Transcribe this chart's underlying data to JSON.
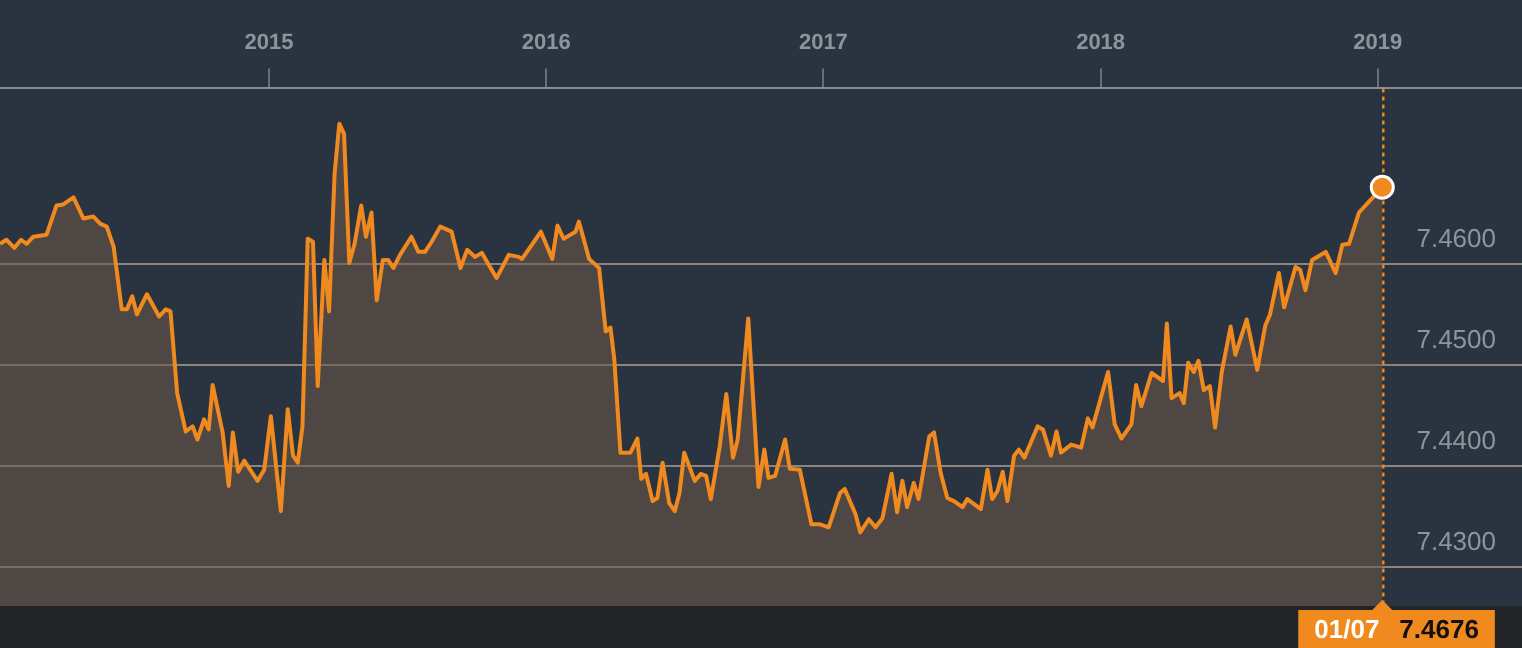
{
  "chart_data": {
    "type": "area",
    "legend": false,
    "grid": "y",
    "marker": "none",
    "line_style": "solid",
    "xlim": [
      2014.03,
      2019.52
    ],
    "xticks": [
      2015,
      2016,
      2017,
      2018,
      2019
    ],
    "ylim": [
      7.4261,
      7.4774
    ],
    "yticks": [
      {
        "value": 7.43,
        "label": "7.4300"
      },
      {
        "value": 7.44,
        "label": "7.4400"
      },
      {
        "value": 7.45,
        "label": "7.4500"
      },
      {
        "value": 7.46,
        "label": "7.4600"
      }
    ],
    "ref_lines": [
      {
        "axis": "x",
        "value": 2019.016,
        "color": "#f0891e",
        "line_style": "dotted"
      }
    ],
    "annotations": [
      "01/07 7.4676"
    ],
    "series": [
      {
        "color": "#f0891e",
        "x": [
          2014.03,
          2014.053,
          2014.082,
          2014.106,
          2014.126,
          2014.15,
          2014.198,
          2014.234,
          2014.258,
          2014.295,
          2014.331,
          2014.367,
          2014.391,
          2014.415,
          2014.44,
          2014.469,
          2014.488,
          2014.507,
          2014.524,
          2014.56,
          2014.604,
          2014.628,
          2014.645,
          2014.669,
          2014.7,
          2014.725,
          2014.742,
          2014.766,
          2014.783,
          2014.797,
          2014.833,
          2014.855,
          2014.87,
          2014.889,
          2014.911,
          2014.959,
          2014.983,
          2015.007,
          2015.043,
          2015.068,
          2015.087,
          2015.104,
          2015.121,
          2015.14,
          2015.159,
          2015.176,
          2015.2,
          2015.217,
          2015.237,
          2015.254,
          2015.271,
          2015.29,
          2015.309,
          2015.333,
          2015.35,
          2015.37,
          2015.389,
          2015.411,
          2015.43,
          2015.449,
          2015.473,
          2015.514,
          2015.539,
          2015.563,
          2015.587,
          2015.618,
          2015.659,
          2015.691,
          2015.715,
          2015.744,
          2015.768,
          2015.821,
          2015.865,
          2015.901,
          2015.913,
          2015.961,
          2015.981,
          2016.022,
          2016.041,
          2016.063,
          2016.106,
          2016.118,
          2016.155,
          2016.191,
          2016.215,
          2016.232,
          2016.246,
          2016.268,
          2016.304,
          2016.329,
          2016.343,
          2016.36,
          2016.384,
          2016.401,
          2016.42,
          2016.444,
          2016.464,
          2016.481,
          2016.498,
          2016.536,
          2016.558,
          2016.577,
          2016.594,
          2016.626,
          2016.65,
          2016.674,
          2016.691,
          2016.729,
          2016.766,
          2016.787,
          2016.802,
          2016.826,
          2016.862,
          2016.879,
          2016.915,
          2016.957,
          2016.988,
          2017.019,
          2017.06,
          2017.077,
          2017.116,
          2017.133,
          2017.164,
          2017.188,
          2017.213,
          2017.246,
          2017.266,
          2017.285,
          2017.302,
          2017.326,
          2017.343,
          2017.382,
          2017.399,
          2017.423,
          2017.447,
          2017.471,
          2017.502,
          2017.519,
          2017.568,
          2017.592,
          2017.609,
          2017.628,
          2017.647,
          2017.664,
          2017.688,
          2017.705,
          2017.725,
          2017.773,
          2017.792,
          2017.821,
          2017.841,
          2017.857,
          2017.894,
          2017.93,
          2017.954,
          2017.971,
          2018.027,
          2018.051,
          2018.075,
          2018.111,
          2018.128,
          2018.147,
          2018.184,
          2018.225,
          2018.239,
          2018.256,
          2018.285,
          2018.3,
          2018.316,
          2018.336,
          2018.353,
          2018.372,
          2018.394,
          2018.413,
          2018.437,
          2018.469,
          2018.486,
          2018.527,
          2018.565,
          2018.594,
          2018.611,
          2018.643,
          2018.662,
          2018.703,
          2018.72,
          2018.739,
          2018.763,
          2018.812,
          2018.848,
          2018.872,
          2018.896,
          2018.932,
          2018.969,
          2019.016
        ],
        "values": [
          7.462,
          7.4624,
          7.4616,
          7.4624,
          7.462,
          7.4627,
          7.4629,
          7.4658,
          7.4659,
          7.4666,
          7.4645,
          7.4647,
          7.464,
          7.4637,
          7.4617,
          7.4555,
          7.4555,
          7.4568,
          7.455,
          7.457,
          7.4548,
          7.4555,
          7.4553,
          7.4472,
          7.4434,
          7.4439,
          7.4426,
          7.4446,
          7.4436,
          7.448,
          7.4433,
          7.438,
          7.4433,
          7.4394,
          7.4405,
          7.4385,
          7.4396,
          7.4449,
          7.4355,
          7.4456,
          7.441,
          7.4403,
          7.4439,
          7.4625,
          7.4622,
          7.4479,
          7.4604,
          7.4553,
          7.469,
          7.4739,
          7.4729,
          7.4601,
          7.462,
          7.4658,
          7.4627,
          7.4651,
          7.4564,
          7.4604,
          7.4604,
          7.4596,
          7.4609,
          7.4627,
          7.4612,
          7.4612,
          7.4622,
          7.4637,
          7.4632,
          7.4596,
          7.4614,
          7.4607,
          7.4611,
          7.4586,
          7.4609,
          7.4607,
          7.4605,
          7.4624,
          7.4632,
          7.4605,
          7.4638,
          7.4625,
          7.4632,
          7.4642,
          7.4605,
          7.4596,
          7.4533,
          7.4537,
          7.4505,
          7.4413,
          7.4413,
          7.4427,
          7.4387,
          7.4392,
          7.4365,
          7.4368,
          7.4403,
          7.4363,
          7.4355,
          7.4373,
          7.4413,
          7.4385,
          7.4392,
          7.439,
          7.4367,
          7.4419,
          7.4471,
          7.4408,
          7.4426,
          7.4546,
          7.4379,
          7.4416,
          7.4388,
          7.439,
          7.4426,
          7.4397,
          7.4396,
          7.4342,
          7.4342,
          7.4339,
          7.4373,
          7.4377,
          7.4352,
          7.4334,
          7.4347,
          7.4339,
          7.4348,
          7.4392,
          7.4354,
          7.4385,
          7.4359,
          7.4383,
          7.4367,
          7.4429,
          7.4433,
          7.4393,
          7.4368,
          7.4365,
          7.4359,
          7.4367,
          7.4357,
          7.4396,
          7.4367,
          7.4375,
          7.4394,
          7.4365,
          7.441,
          7.4416,
          7.4408,
          7.4439,
          7.4436,
          7.441,
          7.4434,
          7.4413,
          7.4421,
          7.4418,
          7.4447,
          7.4438,
          7.4493,
          7.4441,
          7.4427,
          7.4441,
          7.448,
          7.4459,
          7.4492,
          7.4484,
          7.4541,
          7.4467,
          7.4472,
          7.4462,
          7.4502,
          7.4493,
          7.4504,
          7.4475,
          7.4479,
          7.4438,
          7.4493,
          7.4538,
          7.451,
          7.4545,
          7.4495,
          7.4539,
          7.455,
          7.4591,
          7.4557,
          7.4597,
          7.4594,
          7.4574,
          7.4604,
          7.4612,
          7.4591,
          7.4619,
          7.462,
          7.4651,
          7.4662,
          7.4676
        ]
      }
    ]
  }
}
